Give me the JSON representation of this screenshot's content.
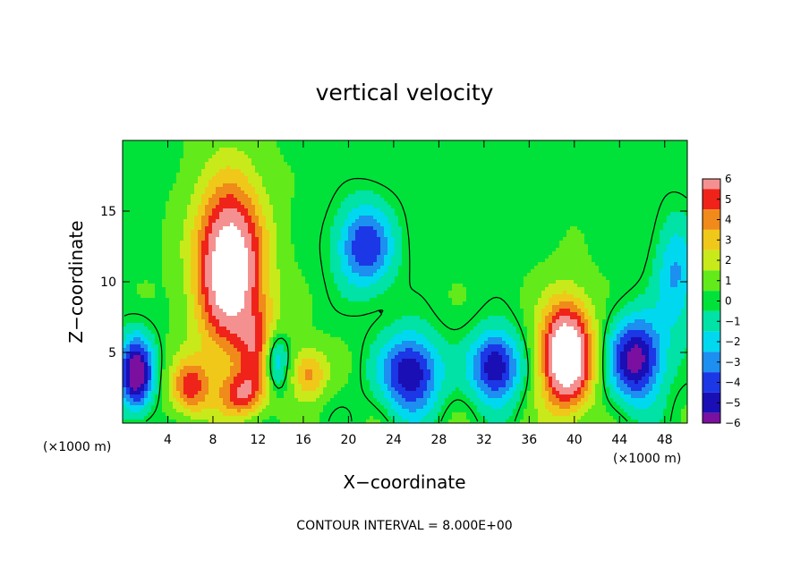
{
  "chart_data": {
    "type": "heatmap",
    "title": "vertical velocity",
    "xlabel": "X−coordinate",
    "ylabel": "Z−coordinate",
    "x_unit": "(×1000 m)",
    "y_unit": "(×1000 m)",
    "xlim": [
      0,
      50
    ],
    "ylim": [
      0,
      20
    ],
    "xticks": [
      4,
      8,
      12,
      16,
      20,
      24,
      28,
      32,
      36,
      40,
      44,
      48
    ],
    "yticks": [
      5,
      10,
      15
    ],
    "colorbar": {
      "min": -6,
      "max": 6,
      "ticks": [
        "6",
        "5",
        "4",
        "3",
        "2",
        "1",
        "0",
        "−1",
        "−2",
        "−3",
        "−4",
        "−5",
        "−6"
      ],
      "placement": "right"
    },
    "footnote": "CONTOUR INTERVAL = 8.000E+00",
    "features": [
      {
        "sign": "up",
        "x": 9.5,
        "z": 11.0,
        "rx": 3.0,
        "rz": 6.0,
        "amp": 8.5
      },
      {
        "sign": "up",
        "x": 12.5,
        "z": 5.0,
        "rx": 2.0,
        "rz": 3.0,
        "amp": 4.0
      },
      {
        "sign": "up",
        "x": 6.0,
        "z": 2.5,
        "rx": 1.8,
        "rz": 2.0,
        "amp": 4.5
      },
      {
        "sign": "up",
        "x": 10.5,
        "z": 2.0,
        "rx": 2.0,
        "rz": 1.6,
        "amp": 4.0
      },
      {
        "sign": "up",
        "x": 16.5,
        "z": 3.5,
        "rx": 1.6,
        "rz": 1.8,
        "amp": 3.5
      },
      {
        "sign": "up",
        "x": 39.3,
        "z": 4.8,
        "rx": 2.3,
        "rz": 3.8,
        "amp": 9.0
      },
      {
        "sign": "down",
        "x": 1.2,
        "z": 3.5,
        "rx": 1.5,
        "rz": 2.6,
        "amp": 7.0
      },
      {
        "sign": "down",
        "x": 13.5,
        "z": 4.5,
        "rx": 1.2,
        "rz": 2.2,
        "amp": 5.5
      },
      {
        "sign": "down",
        "x": 21.5,
        "z": 12.5,
        "rx": 2.5,
        "rz": 3.0,
        "amp": 4.8
      },
      {
        "sign": "down",
        "x": 25.5,
        "z": 3.5,
        "rx": 2.6,
        "rz": 2.8,
        "amp": 6.0
      },
      {
        "sign": "down",
        "x": 33.0,
        "z": 4.0,
        "rx": 2.2,
        "rz": 2.5,
        "amp": 6.0
      },
      {
        "sign": "down",
        "x": 45.5,
        "z": 4.5,
        "rx": 2.4,
        "rz": 3.0,
        "amp": 6.5
      },
      {
        "sign": "down",
        "x": 49.0,
        "z": 10.5,
        "rx": 1.8,
        "rz": 4.0,
        "amp": 3.0
      }
    ]
  }
}
